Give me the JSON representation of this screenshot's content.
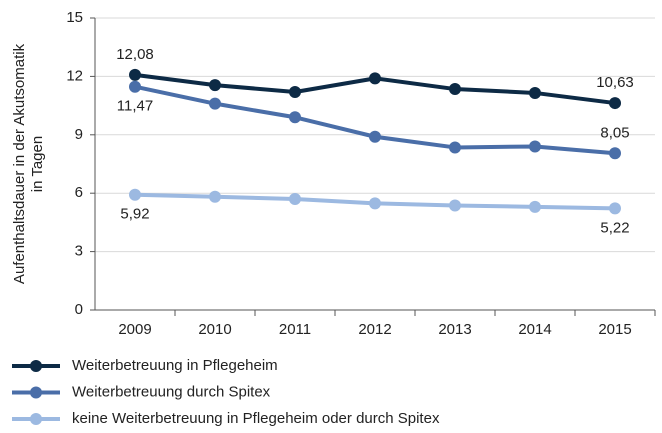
{
  "chart_data": {
    "type": "line",
    "ylabel": [
      "Aufenthaltsdauer in der Akutsomatik",
      "in Tagen"
    ],
    "categories": [
      "2009",
      "2010",
      "2011",
      "2012",
      "2013",
      "2014",
      "2015"
    ],
    "series": [
      {
        "name": "Weiterbetreuung in Pflegeheim",
        "color": "#0d2a45",
        "values": [
          12.08,
          11.55,
          11.2,
          11.9,
          11.35,
          11.15,
          10.63
        ],
        "value_labels": [
          "12,08",
          null,
          null,
          null,
          null,
          null,
          "10,63"
        ]
      },
      {
        "name": "Weiterbetreuung durch Spitex",
        "color": "#4a6ea8",
        "values": [
          11.47,
          10.6,
          9.9,
          8.9,
          8.35,
          8.4,
          8.05
        ],
        "value_labels": [
          "11,47",
          null,
          null,
          null,
          null,
          null,
          "8,05"
        ]
      },
      {
        "name": "keine Weiterbetreuung in Pflegeheim oder durch Spitex",
        "color": "#9cb9e1",
        "values": [
          5.92,
          5.82,
          5.7,
          5.48,
          5.37,
          5.3,
          5.22
        ],
        "value_labels": [
          "5,92",
          null,
          null,
          null,
          null,
          null,
          "5,22"
        ]
      }
    ],
    "ylim": [
      0,
      15
    ],
    "yticks": [
      0,
      3,
      6,
      9,
      12,
      15
    ],
    "grid": true,
    "legend": "bottom"
  }
}
